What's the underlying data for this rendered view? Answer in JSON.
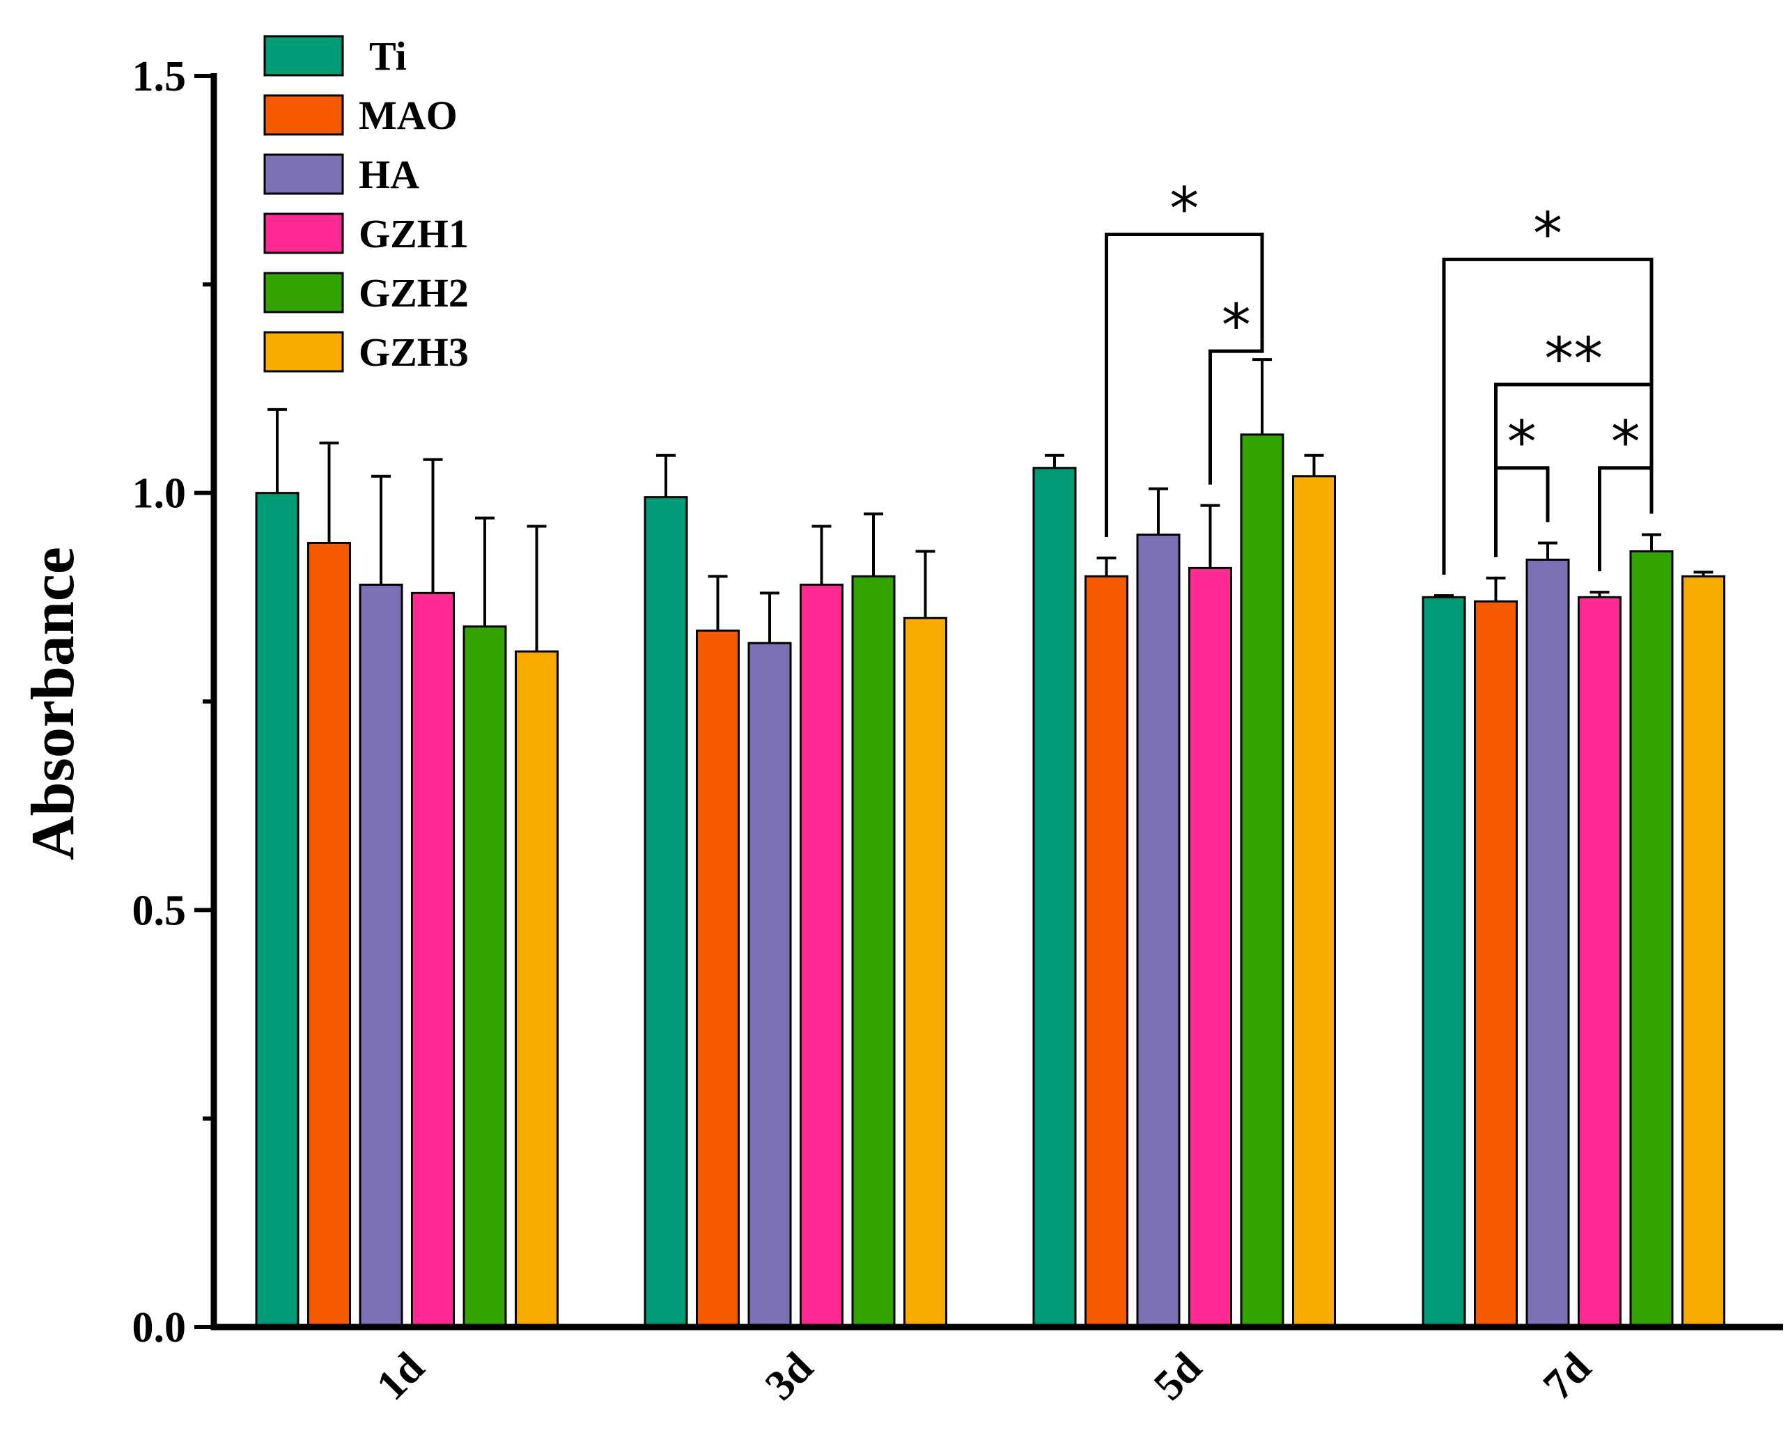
{
  "chart_data": {
    "type": "bar",
    "ylabel": "Absorbance",
    "xlabel": "",
    "ylim": [
      0,
      1.5
    ],
    "yticks": [
      0.0,
      0.5,
      1.0,
      1.5
    ],
    "ytick_labels": [
      "0.0",
      "0.5",
      "1.0",
      "1.5"
    ],
    "categories": [
      "1d",
      "3d",
      "5d",
      "7d"
    ],
    "legend_position": "top-left",
    "series": [
      {
        "name": "Ti",
        "color": "#009B76",
        "values": [
          1.0,
          0.995,
          1.03,
          0.875
        ],
        "errors": [
          0.1,
          0.05,
          0.015,
          0.002
        ]
      },
      {
        "name": "MAO",
        "color": "#F55A00",
        "values": [
          0.94,
          0.835,
          0.9,
          0.87
        ],
        "errors": [
          0.12,
          0.065,
          0.022,
          0.028
        ]
      },
      {
        "name": "HA",
        "color": "#7A72B5",
        "values": [
          0.89,
          0.82,
          0.95,
          0.92
        ],
        "errors": [
          0.13,
          0.06,
          0.055,
          0.02
        ]
      },
      {
        "name": "GZH1",
        "color": "#FF2A94",
        "values": [
          0.88,
          0.89,
          0.91,
          0.875
        ],
        "errors": [
          0.16,
          0.07,
          0.075,
          0.006
        ]
      },
      {
        "name": "GZH2",
        "color": "#33A300",
        "values": [
          0.84,
          0.9,
          1.07,
          0.93
        ],
        "errors": [
          0.13,
          0.075,
          0.09,
          0.02
        ]
      },
      {
        "name": "GZH3",
        "color": "#F7AB00",
        "values": [
          0.81,
          0.85,
          1.02,
          0.9
        ],
        "errors": [
          0.15,
          0.08,
          0.025,
          0.005
        ]
      }
    ],
    "significance": [
      {
        "category": "5d",
        "from": "MAO",
        "to": "GZH2",
        "label": "*",
        "level": 1.31
      },
      {
        "category": "5d",
        "from": "GZH1",
        "to": "GZH2",
        "label": "*",
        "level": 1.17
      },
      {
        "category": "7d",
        "from": "Ti",
        "to": "GZH2",
        "label": "*",
        "level": 1.28
      },
      {
        "category": "7d",
        "from": "MAO",
        "to": "GZH2",
        "label": "**",
        "level": 1.13
      },
      {
        "category": "7d",
        "from": "MAO",
        "to": "HA",
        "label": "*",
        "level": 1.03
      },
      {
        "category": "7d",
        "from": "GZH1",
        "to": "GZH2",
        "label": "*",
        "level": 1.03
      }
    ]
  }
}
